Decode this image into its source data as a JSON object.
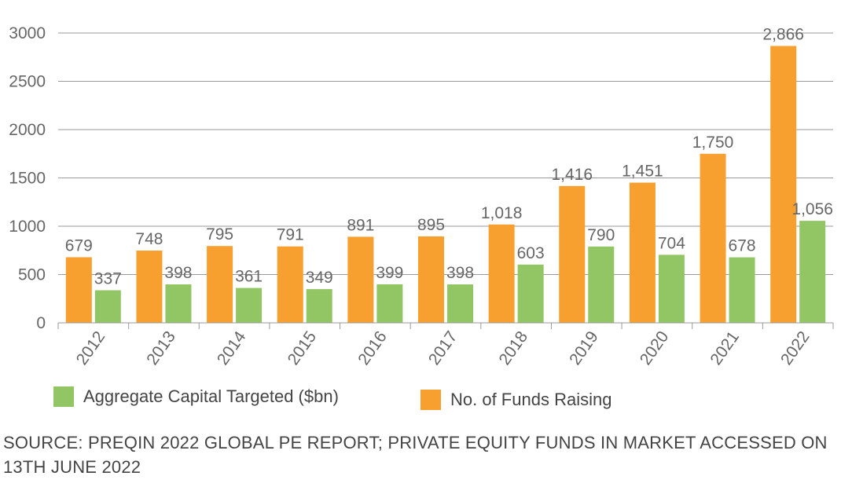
{
  "chart_data": {
    "type": "bar",
    "categories": [
      "2012",
      "2013",
      "2014",
      "2015",
      "2016",
      "2017",
      "2018",
      "2019",
      "2020",
      "2021",
      "2022"
    ],
    "series": [
      {
        "name": "No. of Funds Raising",
        "color": "#F7A030",
        "values": [
          679,
          748,
          795,
          791,
          891,
          895,
          1018,
          1416,
          1451,
          1750,
          2866
        ],
        "labels": [
          "679",
          "748",
          "795",
          "791",
          "891",
          "895",
          "1,018",
          "1,416",
          "1,451",
          "1,750",
          "2,866"
        ]
      },
      {
        "name": "Aggregate Capital Targeted ($bn)",
        "color": "#92C563",
        "values": [
          337,
          398,
          361,
          349,
          399,
          398,
          603,
          790,
          704,
          678,
          1056
        ],
        "labels": [
          "337",
          "398",
          "361",
          "349",
          "399",
          "398",
          "603",
          "790",
          "704",
          "678",
          "1,056"
        ]
      }
    ],
    "ylim": [
      0,
      3000
    ],
    "yticks": [
      0,
      500,
      1000,
      1500,
      2000,
      2500,
      3000
    ],
    "grid": true,
    "legend_position": "bottom"
  },
  "legend": {
    "green_label": "Aggregate Capital Targeted ($bn)",
    "orange_label": "No. of Funds Raising"
  },
  "source": {
    "text": "SOURCE: PREQIN 2022 GLOBAL PE REPORT; PRIVATE EQUITY FUNDS IN MARKET ACCESSED ON 13TH JUNE 2022"
  }
}
